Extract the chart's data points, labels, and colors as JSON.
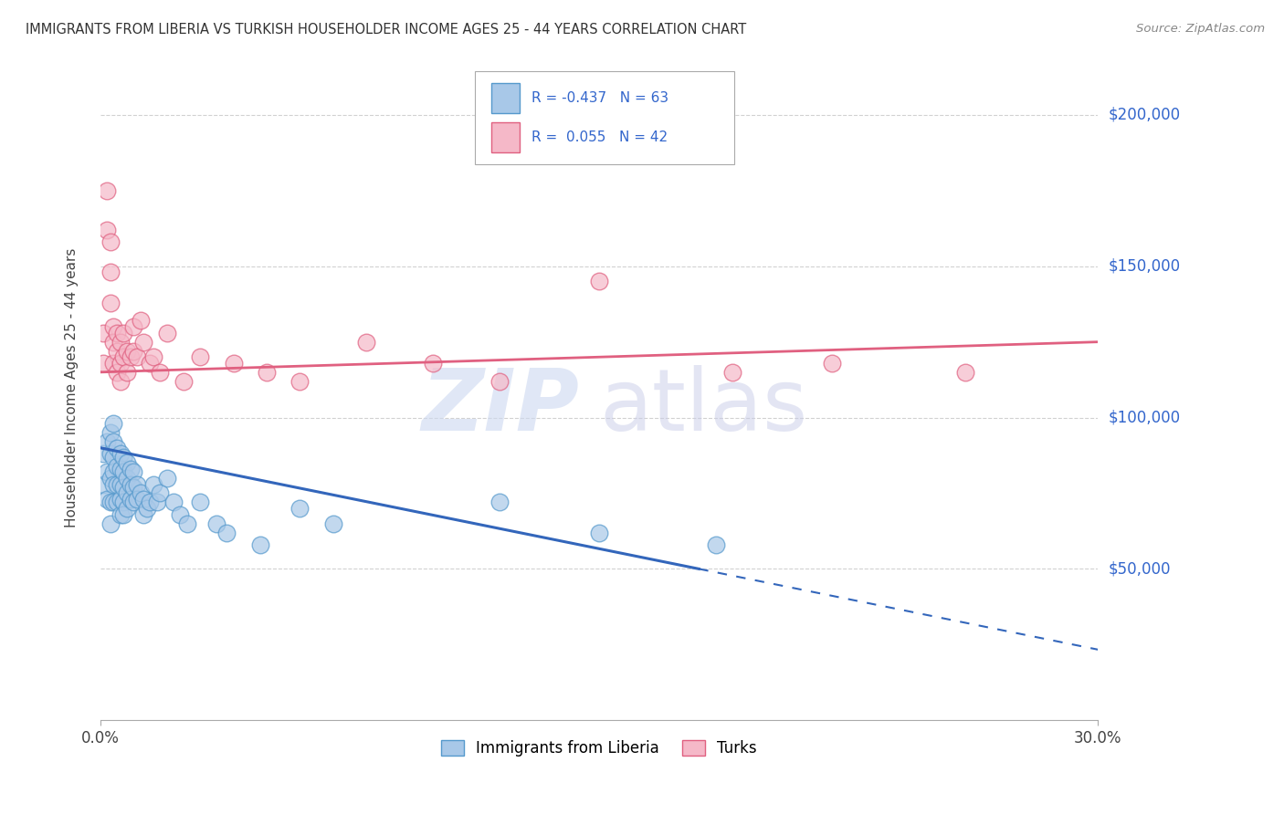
{
  "title": "IMMIGRANTS FROM LIBERIA VS TURKISH HOUSEHOLDER INCOME AGES 25 - 44 YEARS CORRELATION CHART",
  "source": "Source: ZipAtlas.com",
  "ylabel": "Householder Income Ages 25 - 44 years",
  "ytick_labels": [
    "$50,000",
    "$100,000",
    "$150,000",
    "$200,000"
  ],
  "ytick_values": [
    50000,
    100000,
    150000,
    200000
  ],
  "xlim": [
    0.0,
    0.3
  ],
  "ylim": [
    0,
    220000
  ],
  "legend_label1": "Immigrants from Liberia",
  "legend_label2": "Turks",
  "R1": "-0.437",
  "N1": 63,
  "R2": "0.055",
  "N2": 42,
  "color_liberia_fill": "#a8c8e8",
  "color_liberia_edge": "#5599cc",
  "color_turks_fill": "#f5b8c8",
  "color_turks_edge": "#e06080",
  "color_line_liberia": "#3366bb",
  "color_line_turks": "#e06080",
  "watermark_zip_color": "#c8d8f0",
  "watermark_atlas_color": "#c8d0f0",
  "liberia_x": [
    0.001,
    0.001,
    0.002,
    0.002,
    0.002,
    0.003,
    0.003,
    0.003,
    0.003,
    0.003,
    0.004,
    0.004,
    0.004,
    0.004,
    0.004,
    0.004,
    0.005,
    0.005,
    0.005,
    0.005,
    0.006,
    0.006,
    0.006,
    0.006,
    0.006,
    0.007,
    0.007,
    0.007,
    0.007,
    0.007,
    0.008,
    0.008,
    0.008,
    0.008,
    0.009,
    0.009,
    0.009,
    0.01,
    0.01,
    0.01,
    0.011,
    0.011,
    0.012,
    0.013,
    0.013,
    0.014,
    0.015,
    0.016,
    0.017,
    0.018,
    0.02,
    0.022,
    0.024,
    0.026,
    0.03,
    0.035,
    0.038,
    0.048,
    0.06,
    0.07,
    0.12,
    0.15,
    0.185
  ],
  "liberia_y": [
    88000,
    78000,
    92000,
    82000,
    73000,
    95000,
    88000,
    80000,
    72000,
    65000,
    98000,
    92000,
    87000,
    82000,
    78000,
    72000,
    90000,
    84000,
    78000,
    72000,
    88000,
    83000,
    78000,
    73000,
    68000,
    87000,
    82000,
    77000,
    72000,
    68000,
    85000,
    80000,
    75000,
    70000,
    83000,
    78000,
    73000,
    82000,
    77000,
    72000,
    78000,
    73000,
    75000,
    73000,
    68000,
    70000,
    72000,
    78000,
    72000,
    75000,
    80000,
    72000,
    68000,
    65000,
    72000,
    65000,
    62000,
    58000,
    70000,
    65000,
    72000,
    62000,
    58000
  ],
  "turks_x": [
    0.001,
    0.001,
    0.002,
    0.002,
    0.003,
    0.003,
    0.003,
    0.004,
    0.004,
    0.004,
    0.005,
    0.005,
    0.005,
    0.006,
    0.006,
    0.006,
    0.007,
    0.007,
    0.008,
    0.008,
    0.009,
    0.01,
    0.01,
    0.011,
    0.012,
    0.013,
    0.015,
    0.016,
    0.018,
    0.02,
    0.025,
    0.03,
    0.04,
    0.05,
    0.06,
    0.08,
    0.1,
    0.12,
    0.15,
    0.19,
    0.22,
    0.26
  ],
  "turks_y": [
    128000,
    118000,
    175000,
    162000,
    158000,
    148000,
    138000,
    130000,
    125000,
    118000,
    128000,
    122000,
    115000,
    125000,
    118000,
    112000,
    128000,
    120000,
    122000,
    115000,
    120000,
    130000,
    122000,
    120000,
    132000,
    125000,
    118000,
    120000,
    115000,
    128000,
    112000,
    120000,
    118000,
    115000,
    112000,
    125000,
    118000,
    112000,
    145000,
    115000,
    118000,
    115000
  ]
}
